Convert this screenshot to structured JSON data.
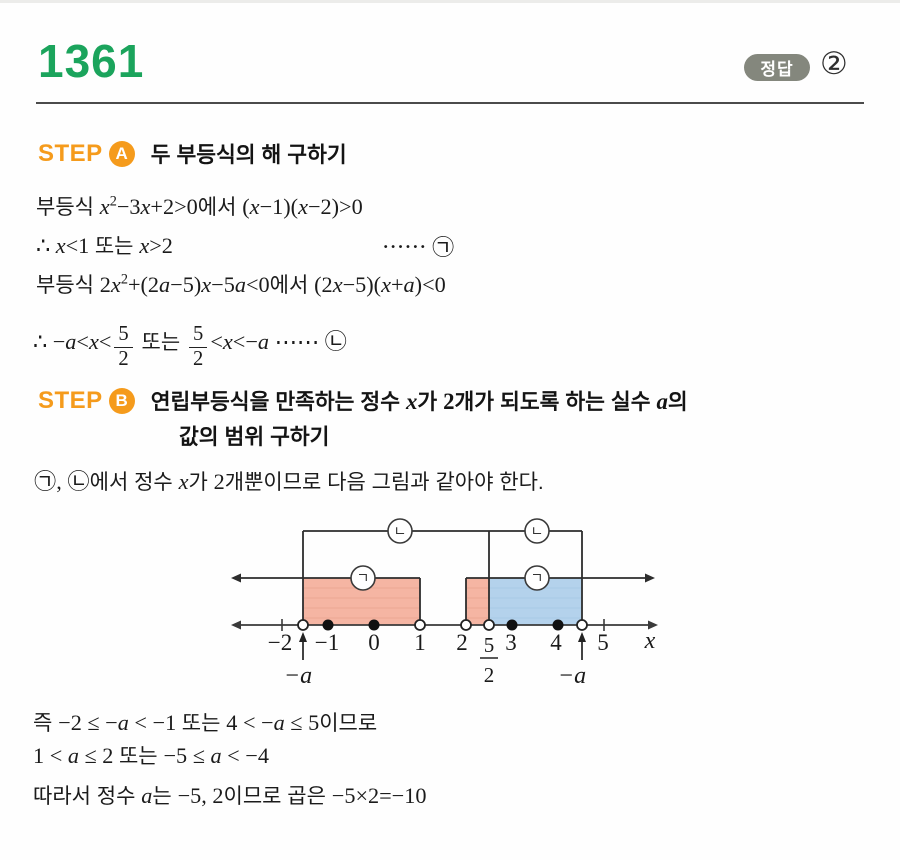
{
  "page": {
    "problem_number": "1361",
    "answer_badge_label": "정답",
    "answer_value": "②"
  },
  "step_a": {
    "label": "STEP",
    "badge": "A",
    "title": "두 부등식의 해 구하기"
  },
  "step_b": {
    "label": "STEP",
    "badge": "B",
    "title_line1": [
      {
        "k": "t",
        "v": "연립부등식을 만족하는 정수 "
      },
      {
        "k": "i",
        "v": "x"
      },
      {
        "k": "t",
        "v": "가 "
      },
      {
        "k": "m",
        "v": "2"
      },
      {
        "k": "t",
        "v": "개가 되도록 하는 실수 "
      },
      {
        "k": "i",
        "v": "a"
      },
      {
        "k": "t",
        "v": "의"
      }
    ],
    "title_line2": [
      {
        "k": "t",
        "v": "값의 범위 구하기"
      }
    ]
  },
  "solution": {
    "a1": [
      {
        "k": "t",
        "v": "부등식 "
      },
      {
        "k": "i",
        "v": "x"
      },
      {
        "k": "sup",
        "v": "2"
      },
      {
        "k": "m",
        "v": "−3"
      },
      {
        "k": "i",
        "v": "x"
      },
      {
        "k": "m",
        "v": "+2>0"
      },
      {
        "k": "t",
        "v": "에서 "
      },
      {
        "k": "m",
        "v": "("
      },
      {
        "k": "i",
        "v": "x"
      },
      {
        "k": "m",
        "v": "−1)("
      },
      {
        "k": "i",
        "v": "x"
      },
      {
        "k": "m",
        "v": "−2)>0"
      }
    ],
    "a2_main": [
      {
        "k": "m",
        "v": "∴ "
      },
      {
        "k": "i",
        "v": "x"
      },
      {
        "k": "m",
        "v": "<1 "
      },
      {
        "k": "t",
        "v": "또는 "
      },
      {
        "k": "i",
        "v": "x"
      },
      {
        "k": "m",
        "v": ">2"
      }
    ],
    "a2_ref": [
      {
        "k": "m",
        "v": "⋯⋯ ㉠"
      }
    ],
    "a3": [
      {
        "k": "t",
        "v": "부등식 "
      },
      {
        "k": "m",
        "v": "2"
      },
      {
        "k": "i",
        "v": "x"
      },
      {
        "k": "sup",
        "v": "2"
      },
      {
        "k": "m",
        "v": "+(2"
      },
      {
        "k": "i",
        "v": "a"
      },
      {
        "k": "m",
        "v": "−5)"
      },
      {
        "k": "i",
        "v": "x"
      },
      {
        "k": "m",
        "v": "−5"
      },
      {
        "k": "i",
        "v": "a"
      },
      {
        "k": "m",
        "v": "<0"
      },
      {
        "k": "t",
        "v": "에서 "
      },
      {
        "k": "m",
        "v": "(2"
      },
      {
        "k": "i",
        "v": "x"
      },
      {
        "k": "m",
        "v": "−5)("
      },
      {
        "k": "i",
        "v": "x"
      },
      {
        "k": "m",
        "v": "+"
      },
      {
        "k": "i",
        "v": "a"
      },
      {
        "k": "m",
        "v": ")<0"
      }
    ],
    "a4": [
      {
        "k": "m",
        "v": "∴ −"
      },
      {
        "k": "i",
        "v": "a"
      },
      {
        "k": "m",
        "v": "<"
      },
      {
        "k": "i",
        "v": "x"
      },
      {
        "k": "m",
        "v": "<"
      },
      {
        "frac": {
          "n": "5",
          "d": "2"
        }
      },
      {
        "k": "t",
        "v": " 또는 "
      },
      {
        "frac": {
          "n": "5",
          "d": "2"
        }
      },
      {
        "k": "m",
        "v": "<"
      },
      {
        "k": "i",
        "v": "x"
      },
      {
        "k": "m",
        "v": "<−"
      },
      {
        "k": "i",
        "v": "a"
      },
      {
        "k": "m",
        "v": " ⋯⋯ ㉡"
      }
    ],
    "intro": [
      {
        "k": "m",
        "v": "㉠, ㉡"
      },
      {
        "k": "t",
        "v": "에서 정수 "
      },
      {
        "k": "i",
        "v": "x"
      },
      {
        "k": "t",
        "v": "가 "
      },
      {
        "k": "m",
        "v": "2"
      },
      {
        "k": "t",
        "v": "개뿐이므로 다음 그림과 같아야 한다."
      }
    ],
    "b1": [
      {
        "k": "t",
        "v": "즉 "
      },
      {
        "k": "m",
        "v": "−2 ≤ −"
      },
      {
        "k": "i",
        "v": "a"
      },
      {
        "k": "m",
        "v": " < −1 "
      },
      {
        "k": "t",
        "v": "또는 "
      },
      {
        "k": "m",
        "v": "4 < −"
      },
      {
        "k": "i",
        "v": "a"
      },
      {
        "k": "m",
        "v": " ≤ 5"
      },
      {
        "k": "t",
        "v": "이므로"
      }
    ],
    "b2": [
      {
        "k": "m",
        "v": "1 < "
      },
      {
        "k": "i",
        "v": "a"
      },
      {
        "k": "m",
        "v": " ≤ 2 "
      },
      {
        "k": "t",
        "v": "또는 "
      },
      {
        "k": "m",
        "v": "−5 ≤ "
      },
      {
        "k": "i",
        "v": "a"
      },
      {
        "k": "m",
        "v": " < −4"
      }
    ],
    "b3": [
      {
        "k": "t",
        "v": "따라서 정수 "
      },
      {
        "k": "i",
        "v": "a"
      },
      {
        "k": "t",
        "v": "는 "
      },
      {
        "k": "m",
        "v": "−5, 2"
      },
      {
        "k": "t",
        "v": "이므로 곱은 "
      },
      {
        "k": "m",
        "v": "−5×2=−10"
      }
    ]
  },
  "diagram": {
    "axis_label": "x",
    "tick_labels": [
      "−2",
      "−1",
      "0",
      "1",
      "2",
      "3",
      "4",
      "5"
    ],
    "fraction_tick": {
      "numerator": "5",
      "denominator": "2"
    },
    "point_neg_a_label": "−a",
    "region1_label": "ㄱ",
    "region2_label": "ㄴ",
    "open_points": [
      "−a(left)",
      "1",
      "2",
      "5/2",
      "−a(right)"
    ],
    "closed_points": [
      "−1",
      "0",
      "3",
      "4"
    ]
  },
  "colors": {
    "accent_green": "#1ba45c",
    "accent_orange": "#f59b1c",
    "answer_badge_gray": "#84877d",
    "pink_region": "#f5b5a3",
    "blue_region": "#b4d2ec"
  }
}
